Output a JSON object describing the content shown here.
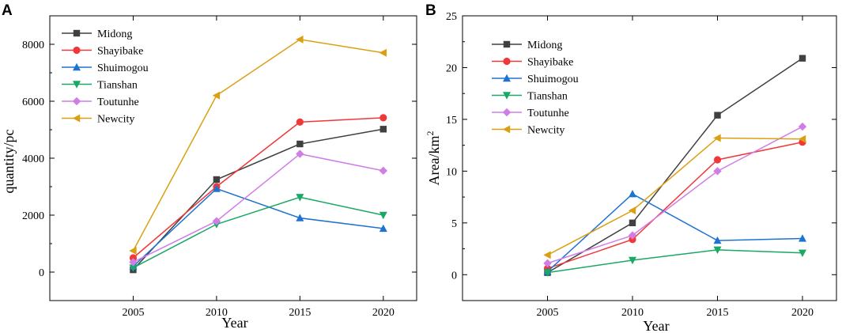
{
  "chart_data": [
    {
      "panel": "A",
      "type": "line",
      "categories": [
        "2005",
        "2010",
        "2015",
        "2020"
      ],
      "x": [
        2005,
        2010,
        2015,
        2020
      ],
      "xlabel": "Year",
      "ylabel": "quantity/pc",
      "xlim": [
        2000,
        2022
      ],
      "ylim": [
        -1000,
        9000
      ],
      "yticks": [
        0,
        2000,
        4000,
        6000,
        8000
      ],
      "ytick_labels": [
        "0",
        "2000",
        "4000",
        "6000",
        "8000"
      ],
      "legend_position": "top-left",
      "grid": false,
      "series": [
        {
          "name": "Midong",
          "color": "#404040",
          "marker": "square",
          "values": [
            80,
            3250,
            4500,
            5020
          ]
        },
        {
          "name": "Shayibake",
          "color": "#f0383a",
          "marker": "circle",
          "values": [
            500,
            3000,
            5270,
            5420
          ]
        },
        {
          "name": "Shuimogou",
          "color": "#1e73d2",
          "marker": "triangle-up",
          "values": [
            200,
            2930,
            1900,
            1530
          ]
        },
        {
          "name": "Tianshan",
          "color": "#1aa866",
          "marker": "triangle-down",
          "values": [
            150,
            1680,
            2630,
            2000
          ]
        },
        {
          "name": "Toutunhe",
          "color": "#d17de6",
          "marker": "diamond",
          "values": [
            350,
            1790,
            4150,
            3560
          ]
        },
        {
          "name": "Newcity",
          "color": "#dba012",
          "marker": "triangle-left",
          "values": [
            750,
            6200,
            8170,
            7700
          ]
        }
      ]
    },
    {
      "panel": "B",
      "type": "line",
      "categories": [
        "2005",
        "2010",
        "2015",
        "2020"
      ],
      "x": [
        2005,
        2010,
        2015,
        2020
      ],
      "xlabel": "Year",
      "ylabel": "Area/km",
      "ylabel_superscript": "2",
      "xlim": [
        2000,
        2022
      ],
      "ylim": [
        -2.5,
        25
      ],
      "yticks": [
        0,
        5,
        10,
        15,
        20,
        25
      ],
      "ytick_labels": [
        "0",
        "5",
        "10",
        "15",
        "20",
        "25"
      ],
      "legend_position": "top-left",
      "grid": false,
      "series": [
        {
          "name": "Midong",
          "color": "#404040",
          "marker": "square",
          "values": [
            0.2,
            5.0,
            15.4,
            20.9
          ]
        },
        {
          "name": "Shayibake",
          "color": "#f0383a",
          "marker": "circle",
          "values": [
            0.6,
            3.4,
            11.1,
            12.8
          ]
        },
        {
          "name": "Shuimogou",
          "color": "#1e73d2",
          "marker": "triangle-up",
          "values": [
            0.3,
            7.8,
            3.3,
            3.5
          ]
        },
        {
          "name": "Tianshan",
          "color": "#1aa866",
          "marker": "triangle-down",
          "values": [
            0.2,
            1.4,
            2.4,
            2.1
          ]
        },
        {
          "name": "Toutunhe",
          "color": "#d17de6",
          "marker": "diamond",
          "values": [
            1.1,
            3.8,
            10.0,
            14.3
          ]
        },
        {
          "name": "Newcity",
          "color": "#dba012",
          "marker": "triangle-left",
          "values": [
            1.9,
            6.2,
            13.2,
            13.1
          ]
        }
      ]
    }
  ]
}
